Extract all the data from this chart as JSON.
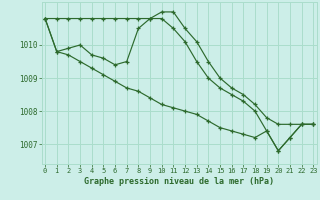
{
  "title": "Graphe pression niveau de la mer (hPa)",
  "bg_color": "#cceee8",
  "grid_color": "#aaddcc",
  "line_color": "#2d6a2d",
  "x_labels": [
    "0",
    "1",
    "2",
    "3",
    "4",
    "5",
    "6",
    "7",
    "8",
    "9",
    "10",
    "11",
    "12",
    "13",
    "14",
    "15",
    "16",
    "17",
    "18",
    "19",
    "20",
    "21",
    "22",
    "23"
  ],
  "y_ticks": [
    1007,
    1008,
    1009,
    1010
  ],
  "ylim": [
    1006.4,
    1011.3
  ],
  "xlim": [
    -0.3,
    23.3
  ],
  "series": [
    [
      1010.8,
      1010.8,
      1010.8,
      1010.8,
      1010.8,
      1010.8,
      1010.8,
      1010.8,
      1010.8,
      1010.8,
      1011.0,
      1011.0,
      1010.5,
      1010.1,
      1009.5,
      1009.0,
      1008.7,
      1008.5,
      1008.2,
      1007.8,
      1007.6,
      1007.6,
      1007.6,
      1007.6
    ],
    [
      1010.8,
      1009.8,
      1009.9,
      1010.0,
      1009.7,
      1009.6,
      1009.4,
      1009.5,
      1010.5,
      1010.8,
      1010.8,
      1010.5,
      1010.1,
      1009.5,
      1009.0,
      1008.7,
      1008.5,
      1008.3,
      1008.0,
      1007.4,
      1006.8,
      1007.2,
      1007.6,
      1007.6
    ],
    [
      1010.8,
      1009.8,
      1009.7,
      1009.5,
      1009.3,
      1009.1,
      1008.9,
      1008.7,
      1008.6,
      1008.4,
      1008.2,
      1008.1,
      1008.0,
      1007.9,
      1007.7,
      1007.5,
      1007.4,
      1007.3,
      1007.2,
      1007.4,
      1006.8,
      1007.2,
      1007.6,
      1007.6
    ]
  ]
}
